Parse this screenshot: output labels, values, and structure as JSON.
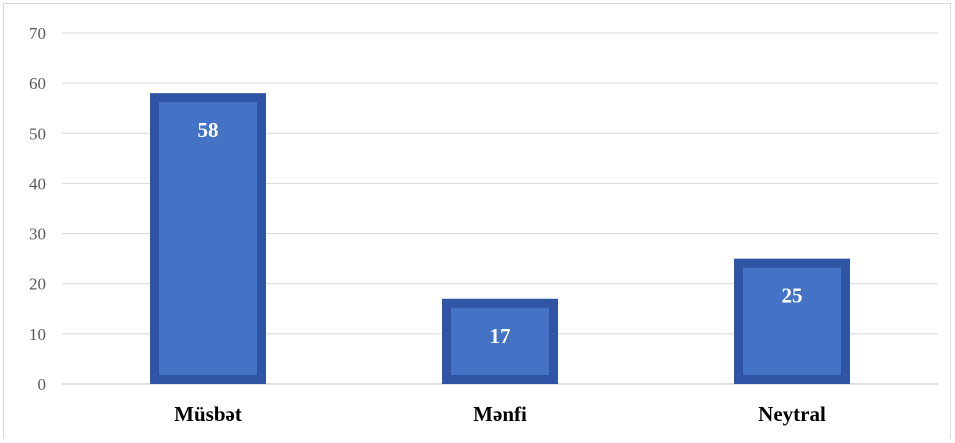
{
  "chart_data": {
    "type": "bar",
    "categories": [
      "Müsbət",
      "Mənfi",
      "Neytral"
    ],
    "values": [
      58,
      17,
      25
    ],
    "data_labels": [
      "58",
      "17",
      "25"
    ],
    "title": "",
    "xlabel": "",
    "ylabel": "",
    "ylim": [
      0,
      70
    ],
    "yticks": [
      0,
      10,
      20,
      30,
      40,
      50,
      60,
      70
    ],
    "ytick_labels": [
      "0",
      "10",
      "20",
      "30",
      "40",
      "50",
      "60",
      "70"
    ],
    "grid": true,
    "legend": "none",
    "colors": {
      "bar_fill": "#4472c4",
      "bar_border": "#2f55a4",
      "grid": "#d9d9d9",
      "axis": "#bfbfbf"
    }
  }
}
